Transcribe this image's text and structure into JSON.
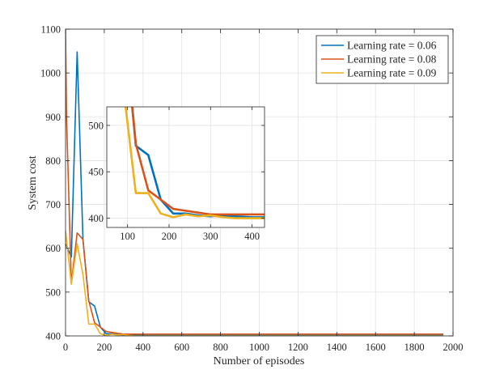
{
  "chart_data": {
    "type": "line",
    "title": "",
    "xlabel": "Number of episodes",
    "ylabel": "System cost",
    "xlim": [
      0,
      2000
    ],
    "ylim": [
      400,
      1100
    ],
    "xticks": [
      0,
      200,
      400,
      600,
      800,
      1000,
      1200,
      1400,
      1600,
      1800,
      2000
    ],
    "yticks": [
      400,
      500,
      600,
      700,
      800,
      900,
      1000,
      1100
    ],
    "grid": true,
    "legend_position": "top-right",
    "series": [
      {
        "name": "Learning rate = 0.06",
        "color": "#0072BD",
        "x": [
          0,
          30,
          60,
          90,
          120,
          150,
          180,
          210,
          240,
          270,
          300,
          330,
          360,
          400,
          500,
          600,
          700,
          800,
          900,
          1000,
          1100,
          1200,
          1300,
          1400,
          1500,
          1600,
          1700,
          1800,
          1900,
          1950
        ],
        "values": [
          610,
          580,
          1048,
          620,
          478,
          468,
          420,
          405,
          405,
          403,
          402,
          403,
          402,
          401,
          401,
          401,
          401,
          401,
          401,
          401,
          401,
          401,
          401,
          401,
          401,
          401,
          401,
          401,
          401,
          401
        ]
      },
      {
        "name": "Learning rate = 0.08",
        "color": "#D95319",
        "x": [
          0,
          5,
          30,
          60,
          90,
          120,
          150,
          180,
          210,
          240,
          270,
          300,
          330,
          360,
          400,
          500,
          600,
          700,
          800,
          900,
          1000,
          1100,
          1200,
          1300,
          1400,
          1500,
          1600,
          1700,
          1800,
          1900,
          1950
        ],
        "values": [
          1100,
          900,
          520,
          635,
          620,
          480,
          430,
          420,
          410,
          408,
          406,
          404,
          404,
          404,
          404,
          404,
          404,
          404,
          404,
          404,
          404,
          404,
          404,
          404,
          404,
          404,
          404,
          404,
          404,
          404,
          404
        ]
      },
      {
        "name": "Learning rate = 0.09",
        "color": "#EDB120",
        "x": [
          0,
          30,
          60,
          90,
          120,
          150,
          180,
          210,
          240,
          270,
          300,
          330,
          360,
          400,
          500,
          600,
          700,
          800,
          900,
          1000,
          1100,
          1200,
          1300,
          1400,
          1500,
          1600,
          1700,
          1800,
          1900,
          1950
        ],
        "values": [
          640,
          518,
          610,
          540,
          427,
          427,
          405,
          401,
          404,
          402,
          403,
          401,
          400,
          400,
          400,
          400,
          400,
          400,
          400,
          400,
          400,
          400,
          400,
          400,
          400,
          400,
          400,
          400,
          400,
          400
        ]
      }
    ],
    "inset": {
      "xlim": [
        50,
        430
      ],
      "ylim": [
        390,
        520
      ],
      "xticks": [
        100,
        200,
        300,
        400
      ],
      "yticks": [
        400,
        450,
        500
      ],
      "grid": true
    }
  }
}
